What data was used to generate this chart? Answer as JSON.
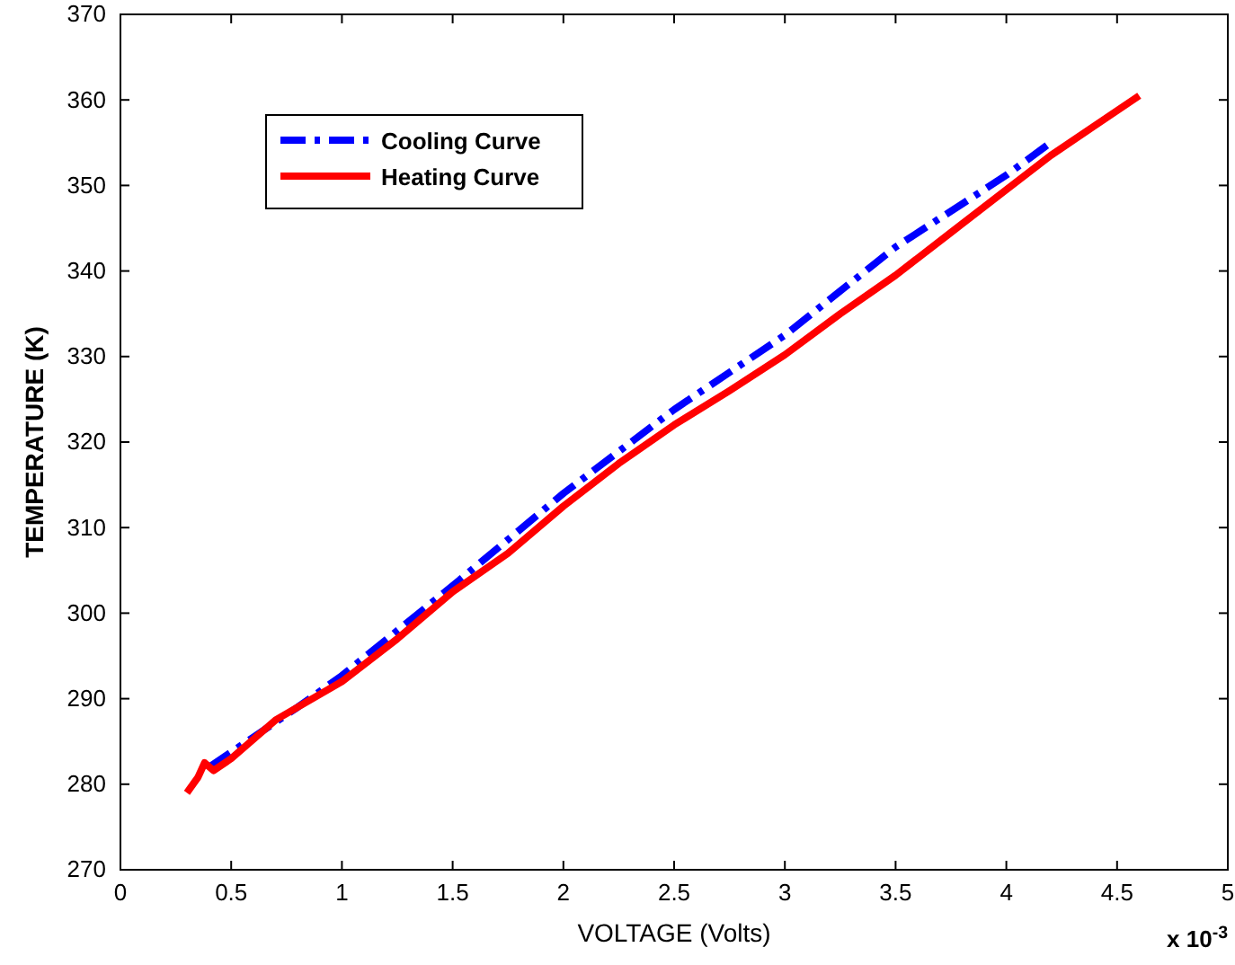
{
  "chart_data": {
    "type": "line",
    "xlabel": "VOLTAGE (Volts)",
    "ylabel": "TEMPERATURE (K)",
    "xlim": [
      0,
      5
    ],
    "xticks": [
      0,
      0.5,
      1,
      1.5,
      2,
      2.5,
      3,
      3.5,
      4,
      4.5,
      5
    ],
    "ylim": [
      270,
      370
    ],
    "yticks": [
      270,
      280,
      290,
      300,
      310,
      320,
      330,
      340,
      350,
      360,
      370
    ],
    "grid": false,
    "legend": "top left",
    "annotations": [
      "x 10$^{-3}$"
    ],
    "series": [
      {
        "name": "Cooling Curve",
        "color": "#0000ff",
        "line_style": "dashed",
        "x": [
          0.4,
          0.6,
          0.8,
          1.0,
          1.5,
          2.0,
          2.5,
          3.0,
          3.5,
          4.0,
          4.2
        ],
        "values": [
          282,
          285.5,
          289,
          292.7,
          303.2,
          314,
          323.8,
          332.5,
          342.8,
          351.2,
          355
        ]
      },
      {
        "name": "Heating Curve",
        "color": "#ff0000",
        "line_style": "solid",
        "x": [
          0.3,
          0.35,
          0.38,
          0.42,
          0.5,
          0.7,
          1.0,
          1.25,
          1.5,
          1.75,
          2.0,
          2.25,
          2.5,
          2.75,
          3.0,
          3.25,
          3.5,
          3.75,
          4.0,
          4.2,
          4.4,
          4.6
        ],
        "values": [
          279,
          280.8,
          282.5,
          281.6,
          283,
          287.5,
          292,
          297,
          302.5,
          307,
          312.5,
          317.5,
          322,
          326,
          330.2,
          335,
          339.5,
          344.5,
          349.5,
          353.5,
          357,
          360.5
        ]
      }
    ]
  }
}
